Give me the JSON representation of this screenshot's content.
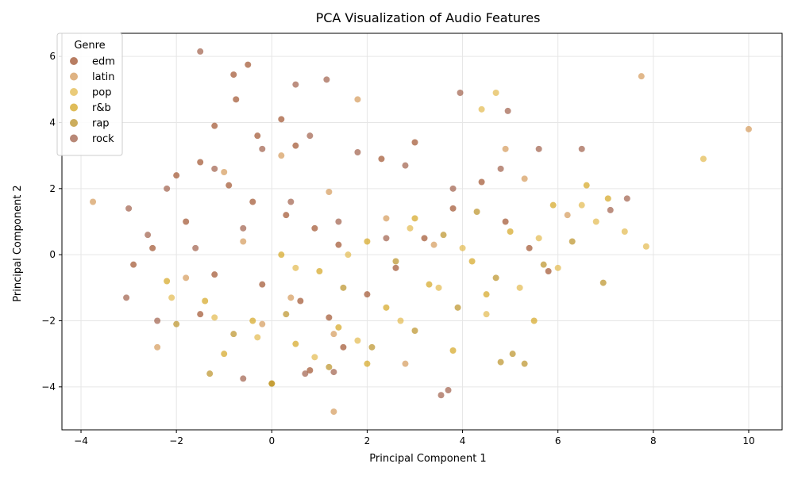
{
  "chart_data": {
    "type": "scatter",
    "title": "PCA Visualization of Audio Features",
    "xlabel": "Principal Component 1",
    "ylabel": "Principal Component 2",
    "xlim": [
      -4.4,
      10.7
    ],
    "ylim": [
      -5.3,
      6.7
    ],
    "xticks": [
      -4,
      -2,
      0,
      2,
      4,
      6,
      8,
      10
    ],
    "yticks": [
      -4,
      -2,
      0,
      2,
      4,
      6
    ],
    "grid": true,
    "legend": {
      "title": "Genre",
      "position": "top-left"
    },
    "series": [
      {
        "name": "edm",
        "color": "#a0522d",
        "points": [
          [
            -0.5,
            5.75
          ],
          [
            -0.8,
            5.45
          ],
          [
            -0.75,
            4.7
          ],
          [
            -1.2,
            3.9
          ],
          [
            -0.3,
            3.6
          ],
          [
            0.2,
            4.1
          ],
          [
            0.5,
            3.3
          ],
          [
            -1.5,
            2.8
          ],
          [
            -2.0,
            2.4
          ],
          [
            -0.9,
            2.1
          ],
          [
            -0.4,
            1.6
          ],
          [
            0.3,
            1.2
          ],
          [
            0.9,
            0.8
          ],
          [
            1.4,
            0.3
          ],
          [
            -1.8,
            1.0
          ],
          [
            -2.5,
            0.2
          ],
          [
            -2.9,
            -0.3
          ],
          [
            -1.2,
            -0.6
          ],
          [
            -0.2,
            -0.9
          ],
          [
            0.6,
            -1.4
          ],
          [
            1.2,
            -1.9
          ],
          [
            2.0,
            -1.2
          ],
          [
            2.6,
            -0.4
          ],
          [
            3.2,
            0.5
          ],
          [
            3.8,
            1.4
          ],
          [
            4.4,
            2.2
          ],
          [
            4.9,
            1.0
          ],
          [
            5.4,
            0.2
          ],
          [
            5.8,
            -0.5
          ],
          [
            0.8,
            -3.5
          ],
          [
            1.5,
            -2.8
          ],
          [
            2.3,
            2.9
          ],
          [
            3.0,
            3.4
          ],
          [
            -1.5,
            -1.8
          ]
        ]
      },
      {
        "name": "latin",
        "color": "#d49a5a",
        "points": [
          [
            7.75,
            5.4
          ],
          [
            10.0,
            3.8
          ],
          [
            -3.75,
            1.6
          ],
          [
            1.8,
            4.7
          ],
          [
            4.9,
            3.2
          ],
          [
            0.2,
            3.0
          ],
          [
            -1.0,
            2.5
          ],
          [
            1.2,
            1.9
          ],
          [
            2.4,
            1.1
          ],
          [
            3.4,
            0.3
          ],
          [
            -0.6,
            0.4
          ],
          [
            -1.8,
            -0.7
          ],
          [
            0.4,
            -1.3
          ],
          [
            1.3,
            -2.4
          ],
          [
            -2.4,
            -2.8
          ],
          [
            1.3,
            -4.75
          ],
          [
            2.8,
            -3.3
          ],
          [
            -0.2,
            -2.1
          ],
          [
            5.3,
            2.3
          ],
          [
            6.2,
            1.2
          ]
        ]
      },
      {
        "name": "pop",
        "color": "#e3b94d",
        "points": [
          [
            9.05,
            2.9
          ],
          [
            7.85,
            0.25
          ],
          [
            4.7,
            4.9
          ],
          [
            4.4,
            4.4
          ],
          [
            6.8,
            1.0
          ],
          [
            7.4,
            0.7
          ],
          [
            6.0,
            -0.4
          ],
          [
            5.2,
            -1.0
          ],
          [
            4.5,
            -1.8
          ],
          [
            3.5,
            -1.0
          ],
          [
            2.7,
            -2.0
          ],
          [
            1.8,
            -2.6
          ],
          [
            0.9,
            -3.1
          ],
          [
            -0.3,
            -2.5
          ],
          [
            -1.2,
            -1.9
          ],
          [
            -2.1,
            -1.3
          ],
          [
            0.5,
            -0.4
          ],
          [
            1.6,
            0.0
          ],
          [
            2.9,
            0.8
          ],
          [
            4.0,
            0.2
          ],
          [
            5.6,
            0.5
          ],
          [
            6.5,
            1.5
          ]
        ]
      },
      {
        "name": "r&b",
        "color": "#d4a521",
        "points": [
          [
            7.05,
            1.7
          ],
          [
            6.6,
            2.1
          ],
          [
            5.9,
            1.5
          ],
          [
            5.0,
            0.7
          ],
          [
            4.2,
            -0.2
          ],
          [
            3.3,
            -0.9
          ],
          [
            2.4,
            -1.6
          ],
          [
            1.4,
            -2.2
          ],
          [
            0.5,
            -2.7
          ],
          [
            -0.4,
            -2.0
          ],
          [
            -1.4,
            -1.4
          ],
          [
            -2.2,
            -0.8
          ],
          [
            0.2,
            0.0
          ],
          [
            1.0,
            -0.5
          ],
          [
            2.0,
            0.4
          ],
          [
            3.0,
            1.1
          ],
          [
            4.5,
            -1.2
          ],
          [
            5.5,
            -2.0
          ],
          [
            3.8,
            -2.9
          ],
          [
            2.0,
            -3.3
          ],
          [
            0.0,
            -3.9
          ],
          [
            -1.0,
            -3.0
          ]
        ]
      },
      {
        "name": "rap",
        "color": "#bb9127",
        "points": [
          [
            6.95,
            -0.85
          ],
          [
            5.3,
            -3.3
          ],
          [
            5.05,
            -3.0
          ],
          [
            4.8,
            -3.25
          ],
          [
            6.3,
            0.4
          ],
          [
            5.7,
            -0.3
          ],
          [
            4.7,
            -0.7
          ],
          [
            3.9,
            -1.6
          ],
          [
            3.0,
            -2.3
          ],
          [
            2.1,
            -2.8
          ],
          [
            1.2,
            -3.4
          ],
          [
            0.0,
            -3.9
          ],
          [
            -1.3,
            -3.6
          ],
          [
            -0.8,
            -2.4
          ],
          [
            0.3,
            -1.8
          ],
          [
            1.5,
            -1.0
          ],
          [
            2.6,
            -0.2
          ],
          [
            3.6,
            0.6
          ],
          [
            4.3,
            1.3
          ],
          [
            -2.0,
            -2.1
          ]
        ]
      },
      {
        "name": "rock",
        "color": "#a0604a",
        "points": [
          [
            -1.5,
            6.15
          ],
          [
            1.15,
            5.3
          ],
          [
            0.5,
            5.15
          ],
          [
            3.95,
            4.9
          ],
          [
            4.95,
            4.35
          ],
          [
            7.45,
            1.7
          ],
          [
            7.1,
            1.35
          ],
          [
            6.5,
            3.2
          ],
          [
            5.6,
            3.2
          ],
          [
            4.8,
            2.6
          ],
          [
            3.8,
            2.0
          ],
          [
            2.8,
            2.7
          ],
          [
            1.8,
            3.1
          ],
          [
            0.8,
            3.6
          ],
          [
            -0.2,
            3.2
          ],
          [
            -1.2,
            2.6
          ],
          [
            -2.2,
            2.0
          ],
          [
            -3.0,
            1.4
          ],
          [
            -2.6,
            0.6
          ],
          [
            -1.6,
            0.2
          ],
          [
            -0.6,
            0.8
          ],
          [
            0.4,
            1.6
          ],
          [
            1.4,
            1.0
          ],
          [
            2.4,
            0.5
          ],
          [
            -3.05,
            -1.3
          ],
          [
            -2.4,
            -2.0
          ],
          [
            -0.6,
            -3.75
          ],
          [
            0.7,
            -3.6
          ],
          [
            1.3,
            -3.55
          ],
          [
            3.7,
            -4.1
          ],
          [
            3.55,
            -4.25
          ]
        ]
      }
    ]
  }
}
